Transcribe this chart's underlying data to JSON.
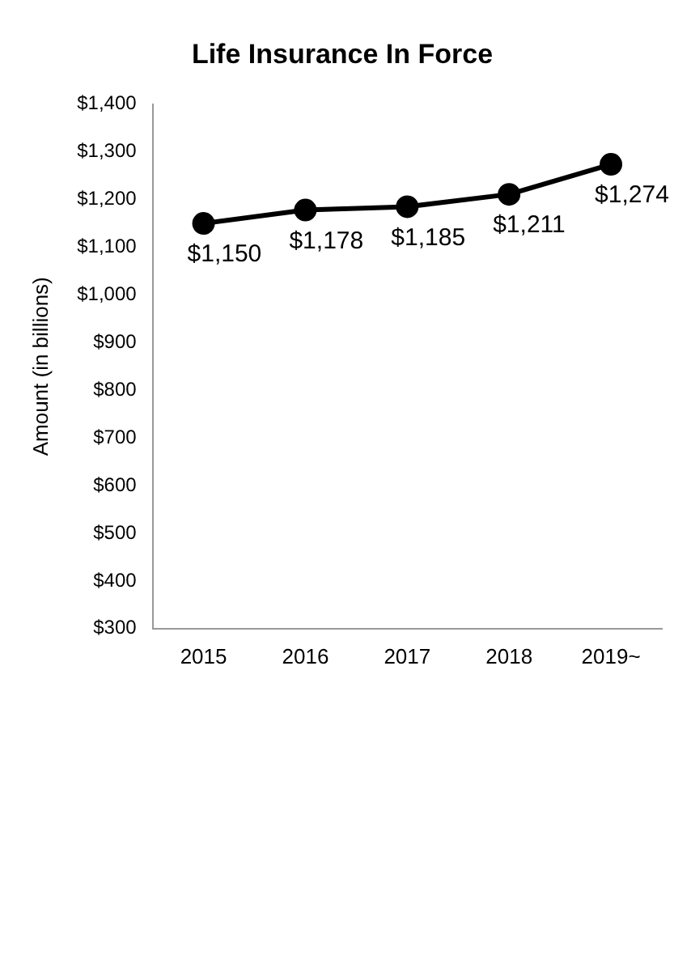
{
  "chart_data": {
    "type": "line",
    "title": "Life Insurance In Force",
    "ylabel": "Amount (in billions)",
    "categories": [
      "2015",
      "2016",
      "2017",
      "2018",
      "2019~"
    ],
    "series": [
      {
        "color": "#000000",
        "values": [
          1150,
          1178,
          1185,
          1211,
          1274
        ],
        "value_labels": [
          "$1,150",
          "$1,178",
          "$1,185",
          "$1,211",
          "$1,274"
        ]
      }
    ],
    "ylim": [
      300,
      1400
    ],
    "yticks": [
      {
        "value": 300,
        "label": "$300"
      },
      {
        "value": 400,
        "label": "$400"
      },
      {
        "value": 500,
        "label": "$500"
      },
      {
        "value": 600,
        "label": "$600"
      },
      {
        "value": 700,
        "label": "$700"
      },
      {
        "value": 800,
        "label": "$800"
      },
      {
        "value": 900,
        "label": "$900"
      },
      {
        "value": 1000,
        "label": "$1,000"
      },
      {
        "value": 1100,
        "label": "$1,100"
      },
      {
        "value": 1200,
        "label": "$1,200"
      },
      {
        "value": 1300,
        "label": "$1,300"
      },
      {
        "value": 1400,
        "label": "$1,400"
      }
    ],
    "marker": "circle",
    "line_style": "solid",
    "legend": false,
    "grid": false
  }
}
